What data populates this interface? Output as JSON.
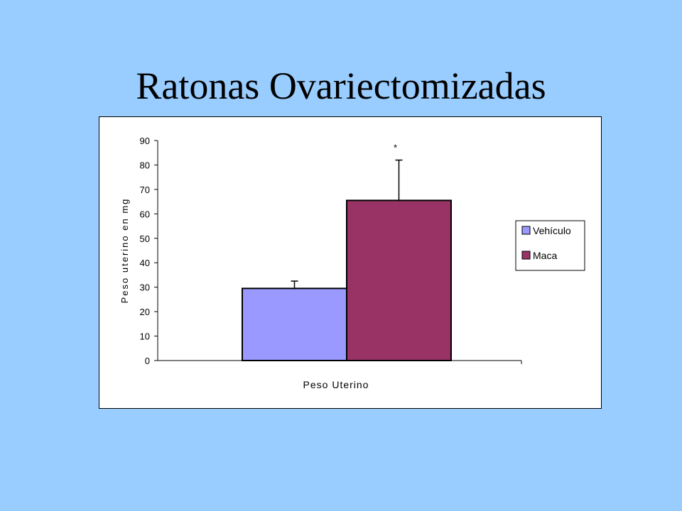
{
  "slide": {
    "title": "Ratonas Ovariectomizadas"
  },
  "chart_data": {
    "type": "bar",
    "categories": [
      "Peso Uterino"
    ],
    "series": [
      {
        "name": "Vehículo",
        "values": [
          29.5
        ],
        "error": [
          3.0
        ],
        "color": "#9999ff"
      },
      {
        "name": "Maca",
        "values": [
          65.5
        ],
        "error": [
          16.5
        ],
        "color": "#993366"
      }
    ],
    "xlabel": "Peso Uterino",
    "ylabel": "Peso uterino en mg",
    "ylim": [
      0,
      90
    ],
    "yticks": [
      0,
      10,
      20,
      30,
      40,
      50,
      60,
      70,
      80,
      90
    ],
    "annotations": [
      {
        "series": "Maca",
        "text": "*"
      }
    ],
    "grid": false,
    "legend_position": "right"
  }
}
